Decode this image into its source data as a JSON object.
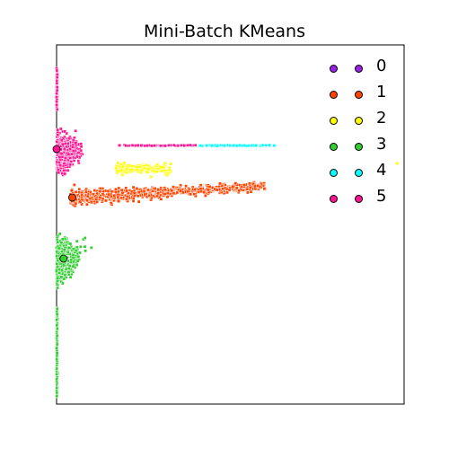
{
  "chart_data": {
    "type": "scatter",
    "title": "Mini-Batch KMeans",
    "xlabel": "",
    "ylabel": "",
    "xlim": [
      0,
      1
    ],
    "ylim": [
      0,
      1
    ],
    "grid": false,
    "legend_placement": "top-right",
    "ticks_labeled": false,
    "series": [
      {
        "name": "0",
        "color": "#9a22e6",
        "description_points": 0
      },
      {
        "name": "1",
        "color": "#ff4500",
        "center": [
          0.05,
          0.57
        ]
      },
      {
        "name": "2",
        "color": "#ffff00",
        "center": [
          0.25,
          0.68
        ]
      },
      {
        "name": "3",
        "color": "#32cd32",
        "center": [
          0.02,
          0.4
        ]
      },
      {
        "name": "4",
        "color": "#00ffff",
        "center": [
          0.4,
          0.72
        ]
      },
      {
        "name": "5",
        "color": "#ff1493",
        "center": [
          0.0,
          0.71
        ]
      }
    ],
    "centroids": [
      {
        "cluster": "1",
        "x": 0.045,
        "y": 0.575
      },
      {
        "cluster": "3",
        "x": 0.02,
        "y": 0.405
      },
      {
        "cluster": "5",
        "x": 0.0,
        "y": 0.71
      }
    ]
  },
  "legend": {
    "items": [
      {
        "label": "0",
        "color": "#9a22e6"
      },
      {
        "label": "1",
        "color": "#ff4500"
      },
      {
        "label": "2",
        "color": "#ffff00"
      },
      {
        "label": "3",
        "color": "#32cd32"
      },
      {
        "label": "4",
        "color": "#00ffff"
      },
      {
        "label": "5",
        "color": "#ff1493"
      }
    ]
  }
}
